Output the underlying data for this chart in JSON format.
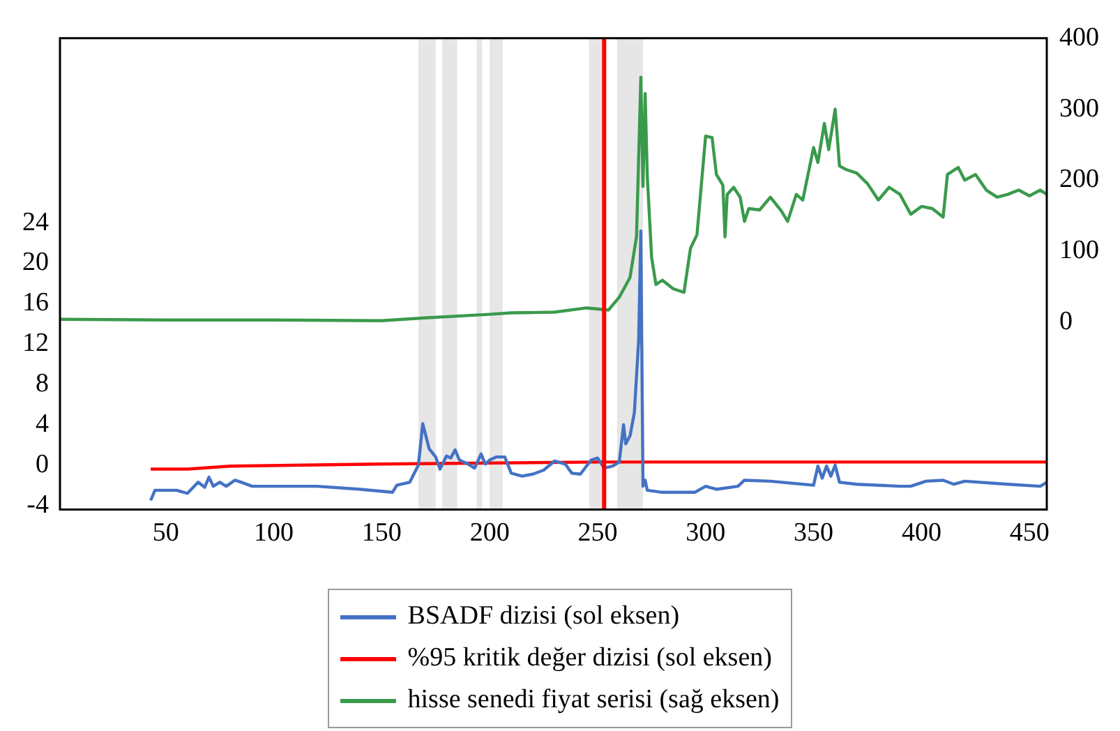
{
  "chart_data": {
    "type": "line",
    "xlim": [
      1,
      458
    ],
    "xticks": [
      50,
      100,
      150,
      200,
      250,
      300,
      350,
      400,
      450
    ],
    "ylim": [
      -4.4,
      42.3
    ],
    "yticks": [
      -4,
      0,
      4,
      8,
      12,
      16,
      20,
      24
    ],
    "y2lim": [
      -264,
      400
    ],
    "y2ticks": [
      0,
      100,
      200,
      300,
      400
    ],
    "grid": false,
    "legend": "bottom",
    "marker": "none",
    "line_style": "solid",
    "series": [
      {
        "name": "BSADF dizisi (sol eksen)",
        "color": "#4472c4",
        "x": [
          43,
          45,
          55,
          60,
          65,
          68,
          70,
          72,
          75,
          78,
          82,
          85,
          90,
          120,
          140,
          155,
          157,
          163,
          167,
          169,
          172,
          175,
          177,
          180,
          182,
          184,
          186,
          190,
          193,
          196,
          198,
          200,
          203,
          207,
          210,
          215,
          220,
          225,
          230,
          235,
          238,
          242,
          247,
          250,
          253,
          257,
          260,
          262,
          263,
          265,
          267,
          269,
          270,
          271,
          272,
          273,
          280,
          295,
          300,
          305,
          315,
          318,
          330,
          350,
          352,
          354,
          356,
          358,
          360,
          362,
          370,
          390,
          395,
          402,
          410,
          415,
          420,
          440,
          455,
          458
        ],
        "values": [
          -3.5,
          -2.5,
          -2.5,
          -2.8,
          -1.7,
          -2.2,
          -1.2,
          -2.1,
          -1.7,
          -2.1,
          -1.5,
          -1.7,
          -2.1,
          -2.1,
          -2.4,
          -2.7,
          -2,
          -1.7,
          0,
          4.1,
          1.6,
          0.8,
          -0.4,
          0.9,
          0.7,
          1.5,
          0.5,
          0.1,
          -0.3,
          1.1,
          0.1,
          0.5,
          0.8,
          0.8,
          -0.8,
          -1.1,
          -0.9,
          -0.5,
          0.4,
          0.1,
          -0.8,
          -0.9,
          0.5,
          0.7,
          -0.3,
          -0.1,
          0.3,
          4,
          2.1,
          2.9,
          5.2,
          12.4,
          23.2,
          -2.1,
          -1.5,
          -2.5,
          -2.7,
          -2.7,
          -2.1,
          -2.4,
          -2.1,
          -1.5,
          -1.6,
          -2,
          -0.1,
          -1.3,
          -0.1,
          -1.1,
          0,
          -1.7,
          -1.9,
          -2.1,
          -2.1,
          -1.6,
          -1.5,
          -1.9,
          -1.6,
          -1.9,
          -2.1,
          -1.7
        ]
      },
      {
        "name": "%95 kritik değer dizisi (sol eksen)",
        "color": "#ff0000",
        "x": [
          43,
          60,
          80,
          150,
          250,
          458
        ],
        "values": [
          -0.4,
          -0.4,
          -0.1,
          0.1,
          0.3,
          0.3
        ]
      },
      {
        "name": "hisse senedi fiyat serisi (sağ eksen)",
        "color": "#3a9a4c",
        "axis": "y2",
        "x": [
          1,
          50,
          100,
          150,
          170,
          200,
          210,
          230,
          245,
          255,
          260,
          265,
          268,
          270,
          271,
          272,
          273,
          275,
          277,
          280,
          285,
          290,
          293,
          296,
          300,
          303,
          305,
          308,
          309,
          310,
          313,
          316,
          318,
          320,
          325,
          330,
          335,
          338,
          342,
          345,
          350,
          352,
          355,
          357,
          360,
          362,
          365,
          370,
          375,
          380,
          385,
          390,
          395,
          400,
          405,
          410,
          412,
          417,
          420,
          425,
          430,
          435,
          440,
          445,
          450,
          455,
          458
        ],
        "values": [
          4,
          3,
          3,
          2,
          6,
          11,
          13,
          14,
          20,
          17,
          35,
          63,
          120,
          345,
          191,
          322,
          205,
          91,
          53,
          59,
          47,
          42,
          104,
          123,
          262,
          260,
          208,
          193,
          120,
          180,
          190,
          176,
          142,
          160,
          158,
          176,
          157,
          142,
          180,
          172,
          246,
          225,
          280,
          243,
          300,
          220,
          215,
          210,
          195,
          172,
          190,
          180,
          152,
          163,
          160,
          148,
          208,
          218,
          200,
          208,
          186,
          176,
          180,
          186,
          178,
          186,
          180
        ]
      }
    ],
    "ref_lines": [
      {
        "axis": "x",
        "value": 253,
        "color": "#ff0000"
      }
    ],
    "bands": [
      {
        "axis": "x",
        "from": 167,
        "to": 175,
        "color": "#e6e6e6"
      },
      {
        "axis": "x",
        "from": 178,
        "to": 185,
        "color": "#e6e6e6"
      },
      {
        "axis": "x",
        "from": 194,
        "to": 196.5,
        "color": "#e6e6e6"
      },
      {
        "axis": "x",
        "from": 200,
        "to": 206,
        "color": "#e6e6e6"
      },
      {
        "axis": "x",
        "from": 246,
        "to": 252,
        "color": "#e6e6e6"
      },
      {
        "axis": "x",
        "from": 259,
        "to": 271,
        "color": "#e6e6e6"
      }
    ]
  }
}
